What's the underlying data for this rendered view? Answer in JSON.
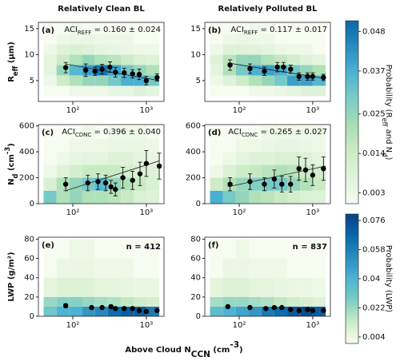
{
  "figure": {
    "column_titles": [
      "Relatively Clean BL",
      "Relatively Polluted BL"
    ],
    "xlabel": {
      "parts": [
        "Above Cloud N",
        "CCN",
        " (cm",
        "-3",
        ")"
      ],
      "styles": [
        "normal",
        "sub",
        "normal",
        "sup",
        "normal"
      ]
    },
    "colorbars": [
      {
        "label": {
          "parts": [
            "Probability (R",
            "eff",
            " and N",
            "d",
            ")"
          ],
          "styles": [
            "normal",
            "sub",
            "normal",
            "sub",
            "normal"
          ]
        },
        "clim": [
          0,
          0.051
        ],
        "ticks": [
          0.003,
          0.014,
          0.025,
          0.037,
          0.048
        ],
        "colors": [
          "#f7fcf0",
          "#e0f3db",
          "#ccebc5",
          "#a8ddb5",
          "#7bccc4",
          "#4eb3d3",
          "#2b8cbe",
          "#0868ac"
        ]
      },
      {
        "label": {
          "parts": [
            "Probability (LWP)"
          ],
          "styles": [
            "normal"
          ]
        },
        "clim": [
          0,
          0.08
        ],
        "ticks": [
          0.004,
          0.022,
          0.04,
          0.058,
          0.076
        ],
        "colors": [
          "#f7fcf0",
          "#ccebc5",
          "#7bccc4",
          "#4eb3d3",
          "#2b8cbe",
          "#0868ac",
          "#084081"
        ]
      }
    ]
  },
  "chart_data": [
    {
      "type": "errorbar",
      "label": "(a)",
      "colorbar": 0,
      "annotation": {
        "parts": [
          "ACI",
          "REFF",
          " = 0.160 ± 0.024"
        ],
        "styles": [
          "normal",
          "sub",
          "normal"
        ]
      },
      "ylabel": {
        "parts": [
          "R",
          "eff",
          " (μm)"
        ],
        "styles": [
          "normal",
          "sub",
          "normal"
        ]
      },
      "log_x": true,
      "xlim": [
        34,
        1740
      ],
      "xticks": [
        {
          "value": 100,
          "label": "10²"
        },
        {
          "value": 1000,
          "label": "10³"
        }
      ],
      "ylim": [
        1,
        16.2
      ],
      "yticks": [
        5,
        10,
        15
      ],
      "x": [
        80,
        150,
        200,
        250,
        320,
        380,
        500,
        650,
        800,
        1000,
        1400
      ],
      "values": [
        7.5,
        7.0,
        6.8,
        7.2,
        7.6,
        6.6,
        6.5,
        6.3,
        6.2,
        5.0,
        5.6
      ],
      "errors": [
        1.0,
        1.2,
        0.8,
        0.9,
        1.0,
        0.9,
        0.9,
        0.8,
        1.0,
        0.8,
        0.7
      ],
      "fit_x": [
        80,
        1500
      ],
      "fit_y": [
        8.2,
        5.0
      ],
      "heat": {
        "xbins": [
          40,
          60,
          90,
          135,
          200,
          300,
          450,
          675,
          1000,
          1500
        ],
        "ybins": [
          2,
          4,
          6,
          8,
          10,
          12,
          14,
          16
        ],
        "values": [
          [
            0,
            0,
            0.003,
            0.003,
            0.003,
            0.005,
            0.005,
            0.008,
            0.006
          ],
          [
            0.003,
            0.014,
            0.02,
            0.025,
            0.025,
            0.03,
            0.037,
            0.037,
            0.03
          ],
          [
            0.006,
            0.025,
            0.035,
            0.04,
            0.048,
            0.04,
            0.03,
            0.025,
            0.02
          ],
          [
            0.006,
            0.014,
            0.02,
            0.025,
            0.02,
            0.018,
            0.014,
            0.01,
            0.008
          ],
          [
            0.003,
            0.008,
            0.01,
            0.008,
            0.006,
            0.005,
            0.004,
            0.003,
            0.003
          ],
          [
            0,
            0.003,
            0.004,
            0.004,
            0.003,
            0.003,
            0.003,
            0,
            0
          ],
          [
            0,
            0,
            0.003,
            0,
            0,
            0,
            0,
            0,
            0
          ]
        ]
      }
    },
    {
      "type": "errorbar",
      "label": "(b)",
      "colorbar": 0,
      "annotation": {
        "parts": [
          "ACI",
          "REFF",
          " = 0.117 ± 0.017"
        ],
        "styles": [
          "normal",
          "sub",
          "normal"
        ]
      },
      "log_x": true,
      "xlim": [
        34,
        1740
      ],
      "xticks": [
        {
          "value": 100,
          "label": "10²"
        },
        {
          "value": 1000,
          "label": "10³"
        }
      ],
      "ylim": [
        1,
        16.2
      ],
      "yticks": [
        5,
        10,
        15
      ],
      "x": [
        75,
        140,
        220,
        330,
        400,
        500,
        650,
        850,
        1000,
        1400
      ],
      "values": [
        8.0,
        7.3,
        6.8,
        7.6,
        7.6,
        7.2,
        5.8,
        5.8,
        5.8,
        5.6
      ],
      "errors": [
        1.0,
        0.9,
        0.8,
        0.9,
        0.9,
        0.8,
        0.7,
        0.7,
        0.7,
        0.6
      ],
      "fit_x": [
        70,
        1500
      ],
      "fit_y": [
        8.4,
        5.4
      ],
      "heat": {
        "xbins": [
          40,
          60,
          90,
          135,
          200,
          300,
          450,
          675,
          1000,
          1500
        ],
        "ybins": [
          2,
          4,
          6,
          8,
          10,
          12,
          14,
          16
        ],
        "values": [
          [
            0,
            0,
            0,
            0.003,
            0.003,
            0.004,
            0.006,
            0.008,
            0.008
          ],
          [
            0.003,
            0.008,
            0.014,
            0.02,
            0.025,
            0.03,
            0.04,
            0.04,
            0.035
          ],
          [
            0.006,
            0.02,
            0.03,
            0.037,
            0.04,
            0.037,
            0.03,
            0.025,
            0.02
          ],
          [
            0.008,
            0.018,
            0.025,
            0.025,
            0.02,
            0.016,
            0.012,
            0.008,
            0.006
          ],
          [
            0.003,
            0.008,
            0.008,
            0.007,
            0.006,
            0.004,
            0.003,
            0.003,
            0
          ],
          [
            0,
            0.003,
            0.004,
            0.003,
            0.003,
            0,
            0,
            0,
            0
          ],
          [
            0,
            0,
            0,
            0.003,
            0,
            0,
            0,
            0,
            0
          ]
        ]
      }
    },
    {
      "type": "errorbar",
      "label": "(c)",
      "colorbar": 0,
      "annotation": {
        "parts": [
          "ACI",
          "CDNC",
          " = 0.396 ± 0.040"
        ],
        "styles": [
          "normal",
          "sub",
          "normal"
        ]
      },
      "ylabel": {
        "parts": [
          "N",
          "d",
          " (cm",
          "-3",
          ")"
        ],
        "styles": [
          "normal",
          "sub",
          "normal",
          "sup",
          "normal"
        ]
      },
      "log_x": true,
      "xlim": [
        34,
        1740
      ],
      "xticks": [
        {
          "value": 100,
          "label": "10²"
        },
        {
          "value": 1000,
          "label": "10³"
        }
      ],
      "ylim": [
        0,
        610
      ],
      "yticks": [
        0,
        200,
        400,
        600
      ],
      "x": [
        80,
        160,
        220,
        280,
        330,
        380,
        480,
        650,
        820,
        1000,
        1500
      ],
      "values": [
        150,
        160,
        170,
        160,
        130,
        110,
        200,
        180,
        230,
        310,
        290
      ],
      "errors": [
        50,
        60,
        60,
        60,
        50,
        50,
        80,
        70,
        90,
        100,
        100
      ],
      "fit_x": [
        80,
        1500
      ],
      "fit_y": [
        100,
        330
      ],
      "heat": {
        "xbins": [
          40,
          60,
          90,
          135,
          200,
          300,
          450,
          675,
          1000,
          1500
        ],
        "ybins": [
          0,
          100,
          200,
          300,
          400,
          500,
          600
        ],
        "values": [
          [
            0.03,
            0.02,
            0.025,
            0.02,
            0.02,
            0.018,
            0.015,
            0.01,
            0.008
          ],
          [
            0.01,
            0.02,
            0.025,
            0.03,
            0.035,
            0.025,
            0.02,
            0.015,
            0.01
          ],
          [
            0.003,
            0.008,
            0.012,
            0.015,
            0.015,
            0.015,
            0.012,
            0.01,
            0.008
          ],
          [
            0,
            0.003,
            0.005,
            0.006,
            0.006,
            0.008,
            0.008,
            0.006,
            0.005
          ],
          [
            0,
            0,
            0.003,
            0.003,
            0.003,
            0.004,
            0.004,
            0.004,
            0.003
          ],
          [
            0,
            0,
            0,
            0.003,
            0,
            0.003,
            0.003,
            0.003,
            0
          ]
        ]
      }
    },
    {
      "type": "errorbar",
      "label": "(d)",
      "colorbar": 0,
      "annotation": {
        "parts": [
          "ACI",
          "CDNC",
          " = 0.265 ± 0.027"
        ],
        "styles": [
          "normal",
          "sub",
          "normal"
        ]
      },
      "log_x": true,
      "xlim": [
        34,
        1740
      ],
      "xticks": [
        {
          "value": 100,
          "label": "10²"
        },
        {
          "value": 1000,
          "label": "10³"
        }
      ],
      "ylim": [
        0,
        610
      ],
      "yticks": [
        0,
        200,
        400,
        600
      ],
      "x": [
        75,
        140,
        220,
        300,
        380,
        500,
        650,
        800,
        1000,
        1400
      ],
      "values": [
        150,
        170,
        150,
        190,
        150,
        150,
        270,
        260,
        220,
        270
      ],
      "errors": [
        50,
        60,
        50,
        70,
        60,
        60,
        90,
        90,
        80,
        90
      ],
      "fit_x": [
        70,
        1500
      ],
      "fit_y": [
        130,
        290
      ],
      "heat": {
        "xbins": [
          40,
          60,
          90,
          135,
          200,
          300,
          450,
          675,
          1000,
          1500
        ],
        "ybins": [
          0,
          100,
          200,
          300,
          400,
          500,
          600
        ],
        "values": [
          [
            0.037,
            0.03,
            0.025,
            0.02,
            0.018,
            0.015,
            0.012,
            0.01,
            0.008
          ],
          [
            0.014,
            0.02,
            0.025,
            0.028,
            0.03,
            0.03,
            0.025,
            0.02,
            0.015
          ],
          [
            0.003,
            0.01,
            0.014,
            0.016,
            0.018,
            0.02,
            0.018,
            0.014,
            0.012
          ],
          [
            0,
            0.003,
            0.006,
            0.008,
            0.008,
            0.01,
            0.01,
            0.008,
            0.006
          ],
          [
            0,
            0,
            0.003,
            0.003,
            0.004,
            0.005,
            0.005,
            0.004,
            0.003
          ],
          [
            0,
            0,
            0,
            0,
            0.003,
            0.003,
            0.003,
            0.003,
            0.003
          ]
        ]
      }
    },
    {
      "type": "errorbar",
      "label": "(e)",
      "colorbar": 1,
      "annotation": {
        "parts": [
          "n = 412"
        ],
        "styles": [
          "bold"
        ]
      },
      "ylabel": {
        "parts": [
          "LWP (g/m²)"
        ],
        "styles": [
          "normal"
        ]
      },
      "log_x": true,
      "xlim": [
        34,
        1740
      ],
      "xticks": [
        {
          "value": 100,
          "label": "10²"
        },
        {
          "value": 1000,
          "label": "10³"
        }
      ],
      "ylim": [
        0,
        82
      ],
      "yticks": [
        0,
        20,
        40,
        60,
        80
      ],
      "x": [
        80,
        180,
        250,
        330,
        380,
        500,
        650,
        800,
        1000,
        1400
      ],
      "values": [
        11,
        9,
        9,
        10,
        8,
        8,
        8,
        6,
        5,
        6
      ],
      "errors": [
        2,
        1.5,
        1.5,
        1.5,
        1.5,
        1.5,
        1.5,
        1.5,
        1.5,
        1.5
      ],
      "heat": {
        "xbins": [
          40,
          60,
          90,
          135,
          200,
          300,
          450,
          675,
          1000,
          1500
        ],
        "ybins": [
          0,
          10,
          20,
          40,
          60,
          80
        ],
        "values": [
          [
            0.03,
            0.04,
            0.04,
            0.05,
            0.055,
            0.065,
            0.07,
            0.07,
            0.06
          ],
          [
            0.022,
            0.025,
            0.025,
            0.022,
            0.02,
            0.018,
            0.015,
            0.012,
            0.01
          ],
          [
            0.006,
            0.008,
            0.008,
            0.008,
            0.006,
            0.006,
            0.005,
            0.004,
            0.004
          ],
          [
            0,
            0.004,
            0.004,
            0.004,
            0.003,
            0.003,
            0.003,
            0,
            0
          ],
          [
            0,
            0,
            0.003,
            0.003,
            0,
            0,
            0,
            0,
            0
          ]
        ]
      }
    },
    {
      "type": "errorbar",
      "label": "(f)",
      "colorbar": 1,
      "annotation": {
        "parts": [
          "n = 837"
        ],
        "styles": [
          "bold"
        ]
      },
      "log_x": true,
      "xlim": [
        34,
        1740
      ],
      "xticks": [
        {
          "value": 100,
          "label": "10²"
        },
        {
          "value": 1000,
          "label": "10³"
        }
      ],
      "ylim": [
        0,
        82
      ],
      "yticks": [
        0,
        20,
        40,
        60,
        80
      ],
      "x": [
        70,
        140,
        230,
        300,
        380,
        500,
        650,
        850,
        1000,
        1400
      ],
      "values": [
        10,
        9,
        8,
        9,
        9,
        7,
        6,
        7,
        6,
        6
      ],
      "errors": [
        1.2,
        1,
        1,
        1,
        1,
        1,
        1,
        1,
        1,
        1
      ],
      "heat": {
        "xbins": [
          40,
          60,
          90,
          135,
          200,
          300,
          450,
          675,
          1000,
          1500
        ],
        "ybins": [
          0,
          10,
          20,
          40,
          60,
          80
        ],
        "values": [
          [
            0.035,
            0.04,
            0.045,
            0.05,
            0.06,
            0.065,
            0.072,
            0.076,
            0.07
          ],
          [
            0.02,
            0.022,
            0.022,
            0.02,
            0.018,
            0.015,
            0.012,
            0.01,
            0.008
          ],
          [
            0.006,
            0.008,
            0.008,
            0.006,
            0.006,
            0.005,
            0.004,
            0.004,
            0.003
          ],
          [
            0,
            0.004,
            0.004,
            0.003,
            0.003,
            0.003,
            0,
            0,
            0
          ],
          [
            0,
            0,
            0.003,
            0,
            0,
            0,
            0,
            0,
            0
          ]
        ]
      }
    }
  ]
}
